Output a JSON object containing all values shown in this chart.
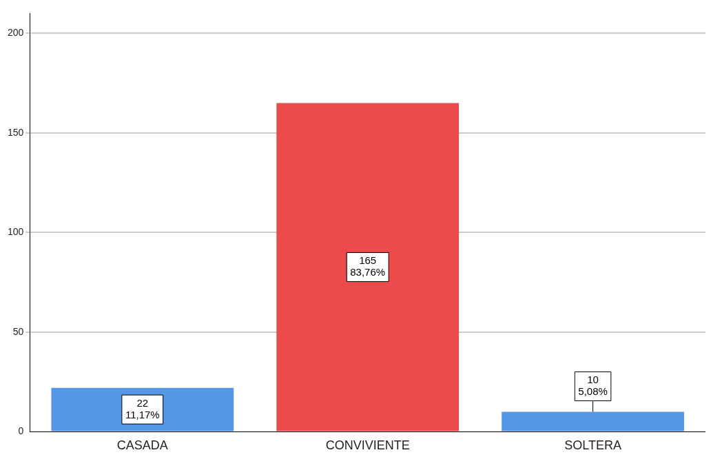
{
  "chart_data": {
    "type": "bar",
    "categories": [
      "CASADA",
      "CONVIVIENTE",
      "SOLTERA"
    ],
    "values": [
      22,
      165,
      10
    ],
    "colors": [
      "#5596e6",
      "#ec4a4b",
      "#5596e6"
    ],
    "value_labels": [
      "22\n11,17%",
      "165\n83,76%",
      "10\n5,08%"
    ],
    "ylim": [
      0,
      210
    ],
    "yticks": [
      0,
      50,
      100,
      150,
      200
    ],
    "grid": "y",
    "legend": false
  }
}
